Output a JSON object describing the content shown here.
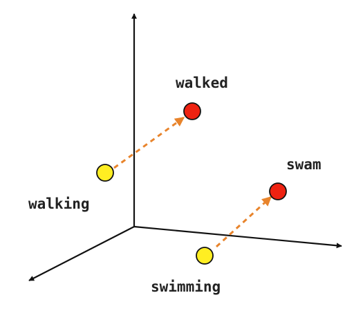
{
  "colors": {
    "axis": "#111111",
    "present_fill": "#ffee22",
    "past_fill": "#ee2211",
    "dot_stroke": "#111111",
    "arrow": "#e8842c",
    "label": "#222222"
  },
  "words": {
    "walking": "walking",
    "walked": "walked",
    "swimming": "swimming",
    "swam": "swam"
  }
}
